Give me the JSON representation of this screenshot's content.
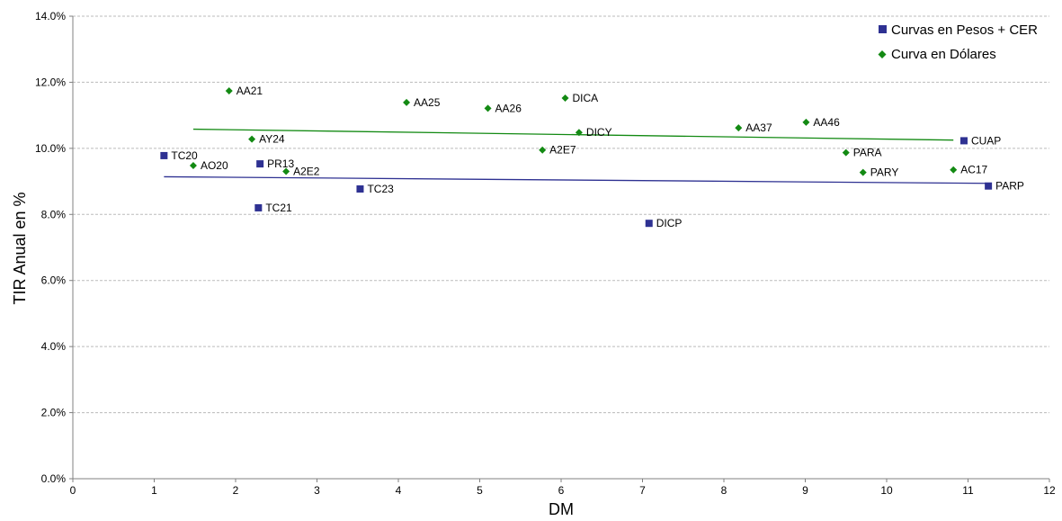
{
  "chart_data": {
    "type": "scatter",
    "xlabel": "DM",
    "ylabel": "TIR Anual en %",
    "xlim": [
      0,
      12
    ],
    "ylim": [
      0,
      14
    ],
    "x_ticks": [
      "0",
      "1",
      "2",
      "3",
      "4",
      "5",
      "6",
      "7",
      "8",
      "9",
      "10",
      "11",
      "12"
    ],
    "y_ticks": [
      "0.0%",
      "2.0%",
      "4.0%",
      "6.0%",
      "8.0%",
      "10.0%",
      "12.0%",
      "14.0%"
    ],
    "grid": "horizontal-dashed",
    "legend_position": "top-right",
    "colors": {
      "pesos": "#2e3192",
      "dolares": "#138a13",
      "grid": "#bbbbbb",
      "axis": "#808080"
    },
    "series": [
      {
        "name": "Curvas en Pesos + CER",
        "marker": "square",
        "points": [
          {
            "label": "TC20",
            "x": 1.12,
            "y": 9.78
          },
          {
            "label": "PR13",
            "x": 2.3,
            "y": 9.53
          },
          {
            "label": "TC21",
            "x": 2.28,
            "y": 8.2
          },
          {
            "label": "TC23",
            "x": 3.53,
            "y": 8.77
          },
          {
            "label": "DICP",
            "x": 7.08,
            "y": 7.73
          },
          {
            "label": "CUAP",
            "x": 10.95,
            "y": 10.23
          },
          {
            "label": "PARP",
            "x": 11.25,
            "y": 8.86
          }
        ],
        "trend": [
          [
            1.12,
            9.14
          ],
          [
            11.25,
            8.94
          ]
        ]
      },
      {
        "name": "Curva en Dólares",
        "marker": "diamond",
        "points": [
          {
            "label": "AA21",
            "x": 1.92,
            "y": 11.74
          },
          {
            "label": "AO20",
            "x": 1.48,
            "y": 9.48
          },
          {
            "label": "AY24",
            "x": 2.2,
            "y": 10.28
          },
          {
            "label": "A2E2",
            "x": 2.62,
            "y": 9.3
          },
          {
            "label": "AA25",
            "x": 4.1,
            "y": 11.39
          },
          {
            "label": "AA26",
            "x": 5.1,
            "y": 11.21
          },
          {
            "label": "DICA",
            "x": 6.05,
            "y": 11.52
          },
          {
            "label": "DICY",
            "x": 6.22,
            "y": 10.48
          },
          {
            "label": "A2E7",
            "x": 5.77,
            "y": 9.95
          },
          {
            "label": "AA37",
            "x": 8.18,
            "y": 10.62
          },
          {
            "label": "AA46",
            "x": 9.01,
            "y": 10.79
          },
          {
            "label": "PARA",
            "x": 9.5,
            "y": 9.87
          },
          {
            "label": "PARY",
            "x": 9.71,
            "y": 9.27
          },
          {
            "label": "AC17",
            "x": 10.82,
            "y": 9.35
          }
        ],
        "trend": [
          [
            1.48,
            10.58
          ],
          [
            10.82,
            10.25
          ]
        ]
      }
    ]
  }
}
